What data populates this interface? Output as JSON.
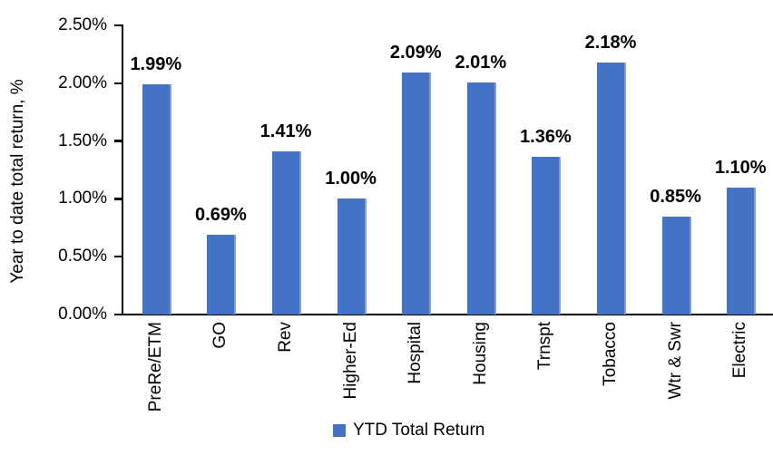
{
  "chart_data": {
    "type": "bar",
    "title": "",
    "ylabel": "Year to date total return, %",
    "xlabel": "",
    "ylim": [
      0,
      2.5
    ],
    "yticks": [
      0,
      0.5,
      1.0,
      1.5,
      2.0,
      2.5
    ],
    "ytick_labels": [
      "0.00%",
      "0.50%",
      "1.00%",
      "1.50%",
      "2.00%",
      "2.50%"
    ],
    "categories": [
      "PreRe/ETM",
      "GO",
      "Rev",
      "Higher-Ed",
      "Hospital",
      "Housing",
      "Trnspt",
      "Tobacco",
      "Wtr & Swr",
      "Electric"
    ],
    "series": [
      {
        "name": "YTD Total Return",
        "values": [
          1.99,
          0.69,
          1.41,
          1.0,
          2.09,
          2.01,
          1.36,
          2.18,
          0.85,
          1.1
        ],
        "value_labels": [
          "1.99%",
          "0.69%",
          "1.41%",
          "1.00%",
          "2.09%",
          "2.01%",
          "1.36%",
          "2.18%",
          "0.85%",
          "1.10%"
        ],
        "color": "#4472C4",
        "edge_highlight_color": "#7F9FDB"
      }
    ],
    "grid": false,
    "legend_position": "bottom-center",
    "axis_color": "#000000",
    "text_color": "#000000"
  }
}
